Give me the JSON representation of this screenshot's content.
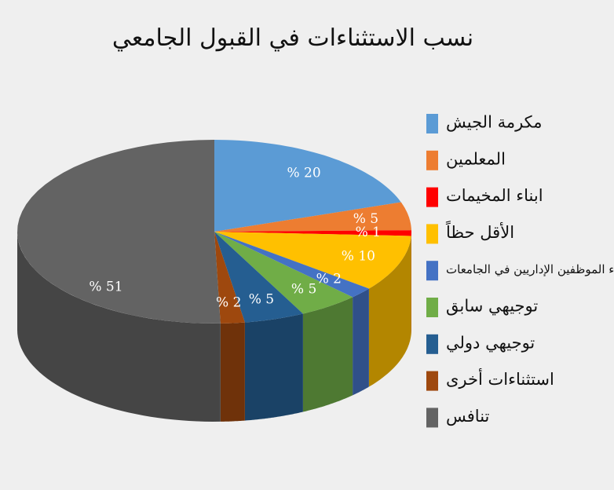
{
  "chart_data": {
    "type": "pie3d",
    "title": "نسب الاستثناءات في القبول الجامعي",
    "categories": [
      "مكرمة الجيش",
      "المعلمين",
      "ابناء المخيمات",
      "الأقل حظاً",
      "ابناء الموظفين الإداريين في الجامعات",
      "توجيهي سابق",
      "توجيهي دولي",
      "استثناءات أخرى",
      "تنافس"
    ],
    "values": [
      20,
      5,
      1,
      10,
      2,
      5,
      5,
      2,
      51
    ],
    "value_labels": [
      "% 20",
      "% 5",
      "% 1",
      "% 10",
      "% 2",
      "% 5",
      "% 5",
      "% 2",
      "% 51"
    ],
    "colors": [
      "#5b9bd5",
      "#ed7d31",
      "#ff0000",
      "#ffc000",
      "#4472c4",
      "#70ad47",
      "#255e91",
      "#9e480e",
      "#636363"
    ],
    "legend": "right"
  }
}
